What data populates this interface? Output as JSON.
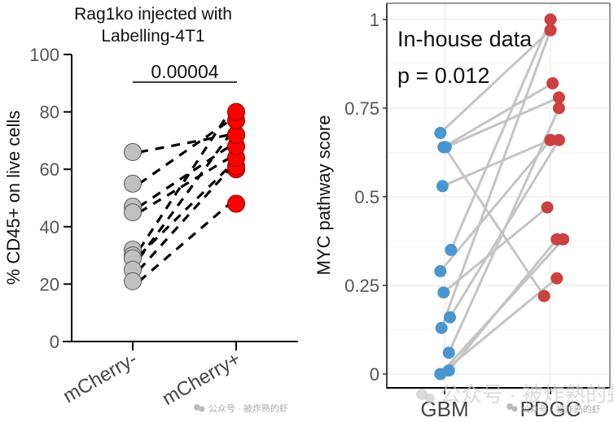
{
  "chart_data": [
    {
      "type": "scatter",
      "subtype": "paired-dot",
      "title": "Rag1ko injected with Labelling-4T1",
      "title_lines": [
        "Rag1ko injected with",
        "Labelling-4T1"
      ],
      "xlabel": "",
      "ylabel": "% CD45+ on live cells",
      "ylim": [
        0,
        100
      ],
      "yticks": [
        0,
        20,
        40,
        60,
        80,
        100
      ],
      "ytick_labels": [
        "0",
        "20",
        "40",
        "60",
        "80",
        "100"
      ],
      "categories": [
        "mCherry-",
        "mCherry+"
      ],
      "grid": false,
      "annotation": "0.00004",
      "colors": {
        "mCherry-": "#c0c0c0",
        "mCherry+": "#ff0000",
        "line": "#000000"
      },
      "pairs": [
        {
          "before": 66,
          "after": 72
        },
        {
          "before": 55,
          "after": 77
        },
        {
          "before": 47,
          "after": 68
        },
        {
          "before": 45,
          "after": 64
        },
        {
          "before": 32,
          "after": 80
        },
        {
          "before": 30,
          "after": 61
        },
        {
          "before": 29,
          "after": 72
        },
        {
          "before": 25,
          "after": 60
        },
        {
          "before": 21,
          "after": 48
        }
      ]
    },
    {
      "type": "scatter",
      "subtype": "paired-dot",
      "title": "",
      "xlabel": "",
      "ylabel": "MYC pathway score",
      "ylim": [
        -0.03,
        1.02
      ],
      "yticks": [
        0,
        0.25,
        0.5,
        0.75,
        1
      ],
      "ytick_labels": [
        "0",
        "0.25",
        "0.5",
        "0.75",
        "1"
      ],
      "categories": [
        "GBM",
        "PDGC"
      ],
      "grid": true,
      "annotations": [
        "In-house data",
        "p = 0.012"
      ],
      "colors": {
        "GBM": "#4a96d0",
        "PDGC": "#cc4040",
        "line": "#c4c4c4"
      },
      "pairs": [
        {
          "before": 0.68,
          "after": 0.97,
          "jb": -0.04,
          "ja": 0.0
        },
        {
          "before": 0.64,
          "after": 0.82,
          "jb": -0.01,
          "ja": 0.02
        },
        {
          "before": 0.64,
          "after": 0.78,
          "jb": 0.01,
          "ja": 0.08
        },
        {
          "before": 0.64,
          "after": 0.22,
          "jb": 0.0,
          "ja": -0.06
        },
        {
          "before": 0.53,
          "after": 0.66,
          "jb": -0.02,
          "ja": 0.0
        },
        {
          "before": 0.35,
          "after": 1.0,
          "jb": 0.06,
          "ja": 0.0
        },
        {
          "before": 0.29,
          "after": 0.66,
          "jb": -0.04,
          "ja": 0.0
        },
        {
          "before": 0.23,
          "after": 0.47,
          "jb": -0.01,
          "ja": -0.03
        },
        {
          "before": 0.16,
          "after": 0.66,
          "jb": 0.05,
          "ja": 0.08
        },
        {
          "before": 0.13,
          "after": 0.97,
          "jb": -0.03,
          "ja": 0.0
        },
        {
          "before": 0.06,
          "after": 0.75,
          "jb": 0.04,
          "ja": 0.08
        },
        {
          "before": 0.01,
          "after": 0.38,
          "jb": 0.04,
          "ja": 0.06
        },
        {
          "before": 0.0,
          "after": 0.38,
          "jb": -0.04,
          "ja": 0.12
        },
        {
          "before": 0.0,
          "after": 0.27,
          "jb": -0.04,
          "ja": 0.06
        }
      ]
    }
  ],
  "watermarks": [
    "公众号 · 被炸熟的虾",
    "公众号 · 被炸熟的虾",
    "公众号 · 被炸熟的虾"
  ]
}
